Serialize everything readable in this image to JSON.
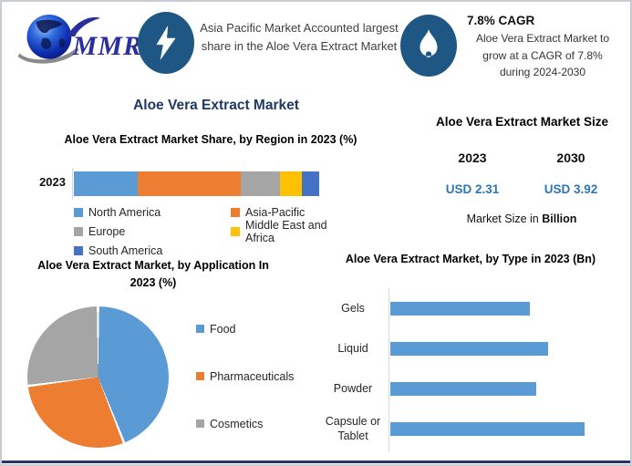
{
  "brand": {
    "logo_text": "MMR"
  },
  "header": {
    "highlight_text": "Asia Pacific Market Accounted largest share in the Aloe Vera Extract Market",
    "cagr_title": "7.8% CAGR",
    "cagr_line1": "Aloe Vera Extract Market to",
    "cagr_line2": "grow at a CAGR of 7.8%",
    "cagr_line3": "during 2024-2030"
  },
  "main_title": "Aloe Vera Extract Market",
  "market_size": {
    "title": "Aloe Vera Extract Market Size",
    "year_left": "2023",
    "year_right": "2030",
    "value_left": "USD 2.31",
    "value_right": "USD 3.92",
    "value_color": "#2e75b6",
    "note_prefix": "Market Size in ",
    "note_bold": "Billion"
  },
  "chart_data": [
    {
      "type": "bar",
      "variant": "stacked-horizontal",
      "title": "Aloe Vera Extract Market Share, by Region in 2023 (%)",
      "category": "2023",
      "unit": "%",
      "series": [
        {
          "name": "North America",
          "value": 26,
          "color": "#5b9bd5"
        },
        {
          "name": "Asia-Pacific",
          "value": 42,
          "color": "#ed7d31"
        },
        {
          "name": "Europe",
          "value": 16,
          "color": "#a5a5a5"
        },
        {
          "name": "Middle East and Africa",
          "value": 9,
          "color": "#ffc000"
        },
        {
          "name": "South America",
          "value": 7,
          "color": "#4472c4"
        }
      ],
      "legend_position": "bottom"
    },
    {
      "type": "pie",
      "title": "Aloe Vera Extract Market, by Application In 2023 (%)",
      "unit": "%",
      "labels": [
        "Food",
        "Pharmaceuticals",
        "Cosmetics"
      ],
      "values": [
        44,
        29,
        27
      ],
      "colors": [
        "#5b9bd5",
        "#ed7d31",
        "#a5a5a5"
      ],
      "start_angle_deg": 0,
      "legend_position": "right"
    },
    {
      "type": "bar",
      "variant": "horizontal",
      "title": "Aloe Vera Extract Market, by Type in 2023 (Bn)",
      "unit": "relative length, % of longest bar (no value axis shown)",
      "categories": [
        "Gels",
        "Liquid",
        "Powder",
        "Capsule or Tablet"
      ],
      "values": [
        72,
        81,
        75,
        100
      ],
      "bar_color": "#5b9bd5",
      "grid": false
    }
  ]
}
